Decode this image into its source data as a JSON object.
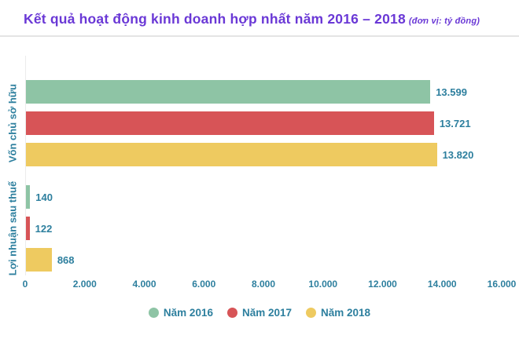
{
  "header": {
    "title": "Kết quả hoạt động kinh doanh hợp nhất năm 2016 – 2018",
    "unit_note": "(đơn vị: tỷ đồng)"
  },
  "colors": {
    "title": "#6a38d6",
    "label": "#2d7f9e",
    "divider": "#e4e4e4",
    "axis_line": "#ececec"
  },
  "chart_data": {
    "type": "bar",
    "orientation": "horizontal",
    "categories": [
      "Vốn chủ sở hữu",
      "Lợi nhuận sau thuế"
    ],
    "series": [
      {
        "name": "Năm 2016",
        "color": "#8ec4a5",
        "values": [
          13599,
          140
        ],
        "labels": [
          "13.599",
          "140"
        ]
      },
      {
        "name": "Năm 2017",
        "color": "#d75457",
        "values": [
          13721,
          122
        ],
        "labels": [
          "13.721",
          "122"
        ]
      },
      {
        "name": "Năm 2018",
        "color": "#eeca60",
        "values": [
          13820,
          868
        ],
        "labels": [
          "13.820",
          "868"
        ]
      }
    ],
    "xlim": [
      0,
      16000
    ],
    "x_ticks": [
      "0",
      "2.000",
      "4.000",
      "6.000",
      "8.000",
      "10.000",
      "12.000",
      "14.000",
      "16.000"
    ],
    "grid": false,
    "legend_position": "bottom"
  }
}
